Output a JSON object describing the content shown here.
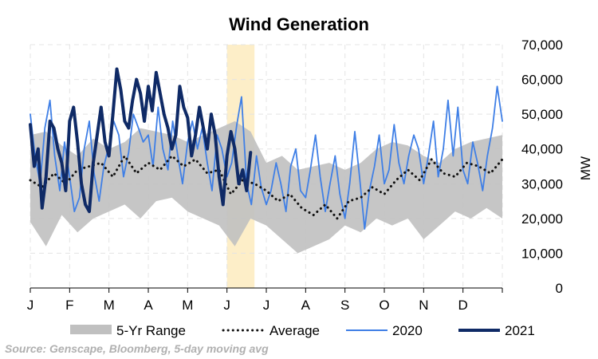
{
  "chart_data": {
    "type": "line",
    "title": "Wind Generation",
    "ylabel": "MW",
    "ylim": [
      0,
      70000
    ],
    "yticks": [
      "0",
      "10,000",
      "20,000",
      "30,000",
      "40,000",
      "50,000",
      "60,000",
      "70,000"
    ],
    "x_ticks": [
      "J",
      "F",
      "M",
      "A",
      "M",
      "J",
      "J",
      "A",
      "S",
      "O",
      "N",
      "D"
    ],
    "grid": true,
    "legend_position": "bottom",
    "highlight": {
      "from_month": 5.0,
      "to_month": 5.7,
      "color": "#fdeec8"
    },
    "source": "Source: Genscape, Bloomberg, 5-day moving avg",
    "colors": {
      "range": "#c0c0c0",
      "average": "#111111",
      "y2020": "#3f7fe6",
      "y2021": "#0f2a66"
    },
    "series": [
      {
        "name": "5-Yr Range",
        "kind": "band",
        "x": [
          0,
          0.4,
          0.8,
          1.2,
          1.6,
          2.0,
          2.4,
          2.8,
          3.2,
          3.6,
          4.0,
          4.4,
          4.8,
          5.2,
          5.6,
          6.0,
          6.4,
          6.8,
          7.2,
          7.6,
          8.0,
          8.4,
          8.8,
          9.2,
          9.6,
          10.0,
          10.4,
          10.8,
          11.2,
          11.6,
          12.0
        ],
        "low": [
          19000,
          12000,
          21000,
          16000,
          20000,
          22000,
          24000,
          20000,
          25000,
          26000,
          22000,
          20000,
          18000,
          12000,
          20000,
          18000,
          14000,
          10000,
          12000,
          14000,
          18000,
          16000,
          20000,
          18000,
          20000,
          14000,
          18000,
          22000,
          20000,
          23000,
          20000
        ],
        "high": [
          44000,
          45000,
          41000,
          38000,
          43000,
          40000,
          42000,
          46000,
          45000,
          44000,
          42000,
          44000,
          46000,
          48000,
          45000,
          36000,
          38000,
          34000,
          35000,
          36000,
          34000,
          36000,
          40000,
          42000,
          41000,
          38000,
          36000,
          40000,
          42000,
          43000,
          44000
        ]
      },
      {
        "name": "Average",
        "kind": "line",
        "x": [
          0,
          0.3,
          0.6,
          0.9,
          1.2,
          1.5,
          1.8,
          2.1,
          2.4,
          2.7,
          3.0,
          3.3,
          3.6,
          3.9,
          4.2,
          4.5,
          4.8,
          5.1,
          5.4,
          5.7,
          6.0,
          6.3,
          6.6,
          6.9,
          7.2,
          7.5,
          7.8,
          8.1,
          8.4,
          8.7,
          9.0,
          9.3,
          9.6,
          9.9,
          10.2,
          10.5,
          10.8,
          11.1,
          11.4,
          11.7,
          12.0
        ],
        "values": [
          31000,
          29000,
          33000,
          30000,
          34000,
          35000,
          36000,
          32000,
          38000,
          33000,
          36000,
          34000,
          38000,
          35000,
          37000,
          33000,
          34000,
          27000,
          31000,
          30000,
          28000,
          25000,
          27000,
          23000,
          21000,
          24000,
          20000,
          25000,
          26000,
          29000,
          27000,
          31000,
          34000,
          31000,
          37000,
          33000,
          32000,
          36000,
          35000,
          33000,
          37000
        ]
      },
      {
        "name": "2020",
        "kind": "line",
        "x": [
          0,
          0.12,
          0.25,
          0.37,
          0.5,
          0.62,
          0.75,
          0.87,
          1.0,
          1.12,
          1.25,
          1.37,
          1.5,
          1.62,
          1.75,
          1.87,
          2.0,
          2.12,
          2.25,
          2.37,
          2.5,
          2.62,
          2.75,
          2.87,
          3.0,
          3.12,
          3.25,
          3.37,
          3.5,
          3.62,
          3.75,
          3.87,
          4.0,
          4.12,
          4.25,
          4.37,
          4.5,
          4.62,
          4.75,
          4.87,
          5.0,
          5.12,
          5.25,
          5.37,
          5.5,
          5.62,
          5.75,
          5.87,
          6.0,
          6.12,
          6.25,
          6.37,
          6.5,
          6.62,
          6.75,
          6.87,
          7.0,
          7.12,
          7.25,
          7.37,
          7.5,
          7.62,
          7.75,
          7.87,
          8.0,
          8.12,
          8.25,
          8.37,
          8.5,
          8.62,
          8.75,
          8.87,
          9.0,
          9.12,
          9.25,
          9.37,
          9.5,
          9.62,
          9.75,
          9.87,
          10.0,
          10.12,
          10.25,
          10.37,
          10.5,
          10.62,
          10.75,
          10.87,
          11.0,
          11.12,
          11.25,
          11.37,
          11.5,
          11.62,
          11.75,
          11.87,
          12.0
        ],
        "values": [
          50000,
          38000,
          30000,
          46000,
          54000,
          38000,
          28000,
          42000,
          32000,
          22000,
          26000,
          40000,
          48000,
          33000,
          25000,
          35000,
          41000,
          48000,
          44000,
          32000,
          39000,
          50000,
          46000,
          42000,
          44000,
          35000,
          52000,
          40000,
          34000,
          48000,
          38000,
          30000,
          42000,
          48000,
          40000,
          46000,
          36000,
          28000,
          44000,
          40000,
          32000,
          36000,
          47000,
          55000,
          30000,
          24000,
          38000,
          29000,
          24000,
          28000,
          36000,
          30000,
          22000,
          35000,
          40000,
          28000,
          26000,
          34000,
          44000,
          32000,
          22000,
          30000,
          38000,
          27000,
          20000,
          30000,
          45000,
          32000,
          17000,
          28000,
          35000,
          44000,
          30000,
          34000,
          47000,
          36000,
          30000,
          38000,
          44000,
          40000,
          30000,
          38000,
          48000,
          32000,
          40000,
          54000,
          38000,
          52000,
          34000,
          30000,
          42000,
          36000,
          28000,
          38000,
          46000,
          58000,
          48000
        ]
      },
      {
        "name": "2021",
        "kind": "line",
        "x": [
          0,
          0.1,
          0.2,
          0.3,
          0.4,
          0.5,
          0.6,
          0.7,
          0.8,
          0.9,
          1.0,
          1.1,
          1.2,
          1.3,
          1.4,
          1.5,
          1.6,
          1.7,
          1.8,
          1.9,
          2.0,
          2.1,
          2.2,
          2.3,
          2.4,
          2.5,
          2.6,
          2.7,
          2.8,
          2.9,
          3.0,
          3.1,
          3.2,
          3.3,
          3.4,
          3.5,
          3.6,
          3.7,
          3.8,
          3.9,
          4.0,
          4.1,
          4.2,
          4.3,
          4.4,
          4.5,
          4.6,
          4.7,
          4.8,
          4.9,
          5.0,
          5.1,
          5.2,
          5.3,
          5.4,
          5.5,
          5.6
        ],
        "values": [
          47000,
          35000,
          40000,
          23000,
          32000,
          48000,
          46000,
          40000,
          36000,
          28000,
          48000,
          52000,
          42000,
          30000,
          24000,
          22000,
          36000,
          44000,
          52000,
          42000,
          38000,
          50000,
          63000,
          57000,
          48000,
          46000,
          54000,
          60000,
          56000,
          48000,
          58000,
          51000,
          62000,
          56000,
          50000,
          46000,
          40000,
          44000,
          58000,
          52000,
          49000,
          38000,
          44000,
          52000,
          46000,
          40000,
          50000,
          44000,
          32000,
          24000,
          38000,
          45000,
          40000,
          30000,
          34000,
          28000,
          39000
        ]
      }
    ]
  }
}
